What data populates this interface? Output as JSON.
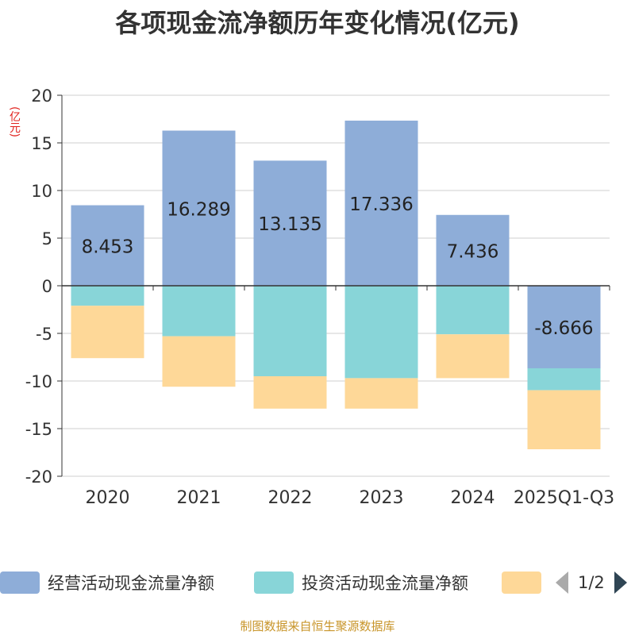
{
  "title": "各项现金流净额历年变化情况(亿元)",
  "unit_label": "(亿元)",
  "source": "制图数据来自恒生聚源数据库",
  "legend": {
    "items": [
      {
        "label": "经营活动现金流量净额",
        "color": "#8eadd8"
      },
      {
        "label": "投资活动现金流量净额",
        "color": "#88d5d8"
      },
      {
        "label": "",
        "color": "#fed898"
      }
    ],
    "pager": "1/2"
  },
  "chart_data": {
    "type": "bar",
    "stacked": true,
    "categories": [
      "2020",
      "2021",
      "2022",
      "2023",
      "2024",
      "2025Q1-Q3"
    ],
    "ylim": [
      -20,
      20
    ],
    "yticks": [
      20,
      15,
      10,
      5,
      0,
      -5,
      -10,
      -15,
      -20
    ],
    "grid": true,
    "legend_position": "bottom",
    "series": [
      {
        "name": "经营活动现金流量净额",
        "color": "#8eadd8",
        "values": [
          8.453,
          16.289,
          13.135,
          17.336,
          7.436,
          -8.666
        ],
        "labels": [
          "8.453",
          "16.289",
          "13.135",
          "17.336",
          "7.436",
          "-8.666"
        ]
      },
      {
        "name": "投资活动现金流量净额",
        "color": "#88d5d8",
        "values": [
          -2.1,
          -5.3,
          -9.5,
          -9.7,
          -5.1,
          -2.3
        ]
      },
      {
        "color": "#fed898",
        "values": [
          -5.5,
          -5.3,
          -3.4,
          -3.2,
          -4.6,
          -6.2
        ]
      }
    ]
  }
}
